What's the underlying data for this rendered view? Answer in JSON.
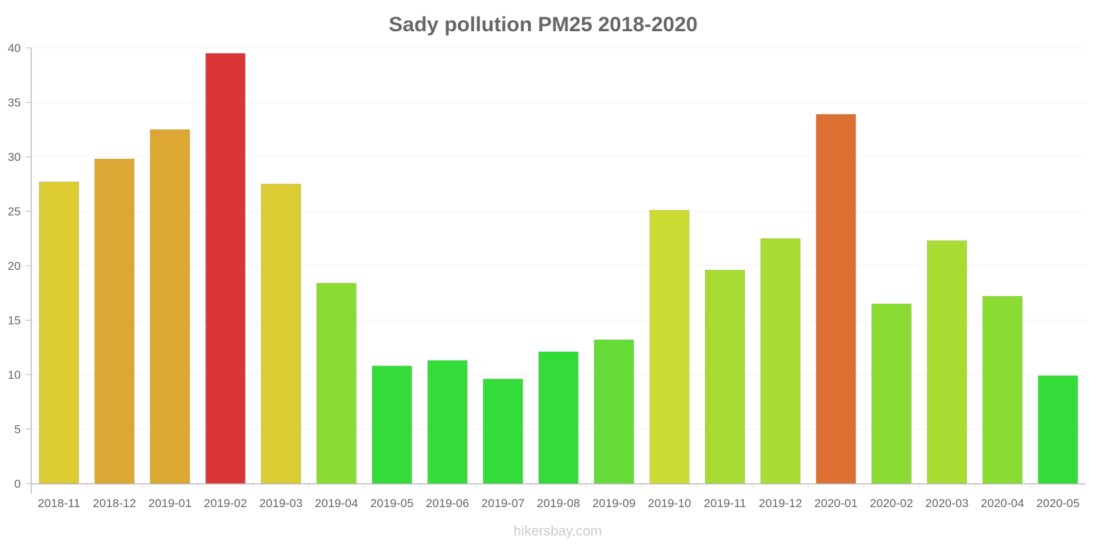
{
  "chart_data": {
    "type": "bar",
    "title": "Sady pollution PM25 2018-2020",
    "xlabel": "",
    "ylabel": "",
    "ylim": [
      0,
      40
    ],
    "yticks": [
      0,
      5,
      10,
      15,
      20,
      25,
      30,
      35,
      40
    ],
    "grid": true,
    "legend": "none",
    "categories": [
      "2018-11",
      "2018-12",
      "2019-01",
      "2019-02",
      "2019-03",
      "2019-04",
      "2019-05",
      "2019-06",
      "2019-07",
      "2019-08",
      "2019-09",
      "2019-10",
      "2019-11",
      "2019-12",
      "2020-01",
      "2020-02",
      "2020-03",
      "2020-04",
      "2020-05"
    ],
    "values": [
      27.7,
      29.8,
      32.5,
      39.5,
      27.5,
      18.4,
      10.8,
      11.3,
      9.6,
      12.1,
      13.2,
      25.1,
      19.6,
      22.5,
      33.9,
      16.5,
      22.3,
      17.2,
      9.9
    ],
    "colors": [
      "#dccb33",
      "#dca833",
      "#dca833",
      "#dc3535",
      "#dccc33",
      "#8adc33",
      "#33dc38",
      "#33dc38",
      "#33dc38",
      "#33dc38",
      "#66dc38",
      "#ccdb33",
      "#a8dc33",
      "#a8dc33",
      "#dc7033",
      "#8adc33",
      "#a8dc33",
      "#8adc33",
      "#33dc38"
    ]
  },
  "watermark": "hikersbay.com"
}
